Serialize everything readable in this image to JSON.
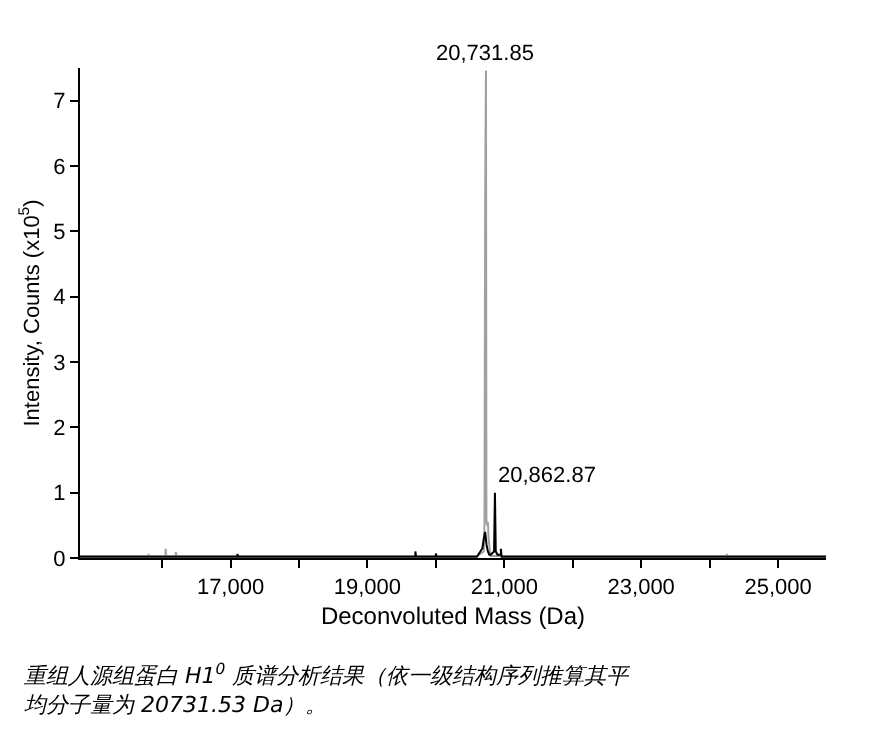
{
  "chart_data": {
    "type": "line",
    "xlabel": "Deconvoluted Mass (Da)",
    "ylabel": "Intensity, Counts (x10$^{5}$)",
    "xlim": [
      14800,
      25700
    ],
    "ylim": [
      0,
      7.5
    ],
    "xticks": [
      {
        "value": 16000,
        "label": null
      },
      {
        "value": 17000,
        "label": "17,000"
      },
      {
        "value": 18000,
        "label": null
      },
      {
        "value": 19000,
        "label": "19,000"
      },
      {
        "value": 20000,
        "label": null
      },
      {
        "value": 21000,
        "label": "21,000"
      },
      {
        "value": 22000,
        "label": null
      },
      {
        "value": 23000,
        "label": "23,000"
      },
      {
        "value": 24000,
        "label": null
      },
      {
        "value": 25000,
        "label": "25,000"
      }
    ],
    "yticks": [
      0,
      1,
      2,
      3,
      4,
      5,
      6,
      7
    ],
    "series": [
      {
        "color": "#a0a0a0",
        "x": [
          14800,
          15800,
          15800,
          15810,
          16050,
          16050,
          16060,
          16200,
          16200,
          16210,
          20600,
          20700,
          20710,
          20720,
          20725,
          20731.85,
          20738,
          20745,
          20760,
          20770,
          20780,
          20790,
          20800,
          24250,
          24250,
          24260,
          25700
        ],
        "values": [
          0.03,
          0.03,
          0.06,
          0.03,
          0.03,
          0.14,
          0.03,
          0.03,
          0.09,
          0.03,
          0.03,
          0.1,
          0.5,
          5.4,
          6.4,
          7.46,
          0.6,
          0.5,
          0.55,
          0.3,
          0.2,
          0.1,
          0.03,
          0.03,
          0.06,
          0.03,
          0.03
        ]
      },
      {
        "color": "#000000",
        "x": [
          14800,
          17100,
          17100,
          17110,
          19700,
          19700,
          19710,
          20000,
          20000,
          20010,
          20600,
          20680,
          20700,
          20720,
          20740,
          20760,
          20780,
          20800,
          20850,
          20862.87,
          20875,
          20900,
          20950,
          20950,
          20960,
          25700
        ],
        "values": [
          0.02,
          0.02,
          0.06,
          0.02,
          0.02,
          0.1,
          0.02,
          0.02,
          0.07,
          0.02,
          0.02,
          0.15,
          0.3,
          0.4,
          0.2,
          0.1,
          0.05,
          0.05,
          0.1,
          1.0,
          0.1,
          0.05,
          0.05,
          0.14,
          0.02,
          0.02
        ]
      }
    ],
    "annotations": [
      {
        "text": "20,731.85",
        "x": 20731.85,
        "y": 7.46
      },
      {
        "text": "20,862.87",
        "x": 20862.87,
        "y": 1.0
      },
      "重组人源组蛋白 H1$^{0}$ 质谱分析结果（依一级结构序列推算其平均分子量为 20731.53 Da）。"
    ],
    "marker": "none",
    "line_style": "solid"
  }
}
